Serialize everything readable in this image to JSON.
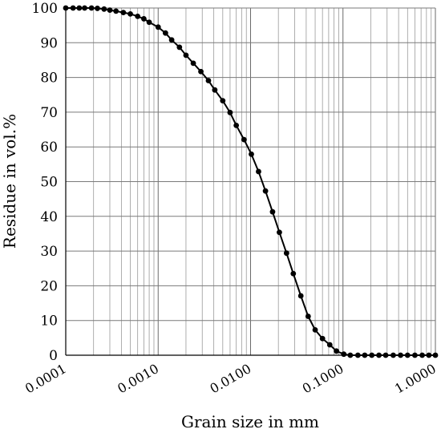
{
  "chart_data": {
    "type": "line",
    "title": "",
    "xlabel": "Grain size in mm",
    "ylabel": "Residue in vol.%",
    "x_scale": "log",
    "xlim": [
      0.0001,
      1.0
    ],
    "ylim": [
      0,
      100
    ],
    "x_tick_labels": [
      "0.0001",
      "0.0010",
      "0.0100",
      "0.1000",
      "1.0000"
    ],
    "y_tick_labels": [
      "0",
      "10",
      "20",
      "30",
      "40",
      "50",
      "60",
      "70",
      "80",
      "90",
      "100"
    ],
    "grid": true,
    "legend": "none",
    "line_color": "#000000",
    "marker": "filled-circle",
    "series": [
      {
        "x": [
          0.0001,
          0.00012,
          0.00014,
          0.00016,
          0.00019,
          0.00022,
          0.00026,
          0.0003,
          0.00035,
          0.00042,
          0.0005,
          0.0006,
          0.0007,
          0.0008,
          0.001,
          0.0012,
          0.0014,
          0.0017,
          0.002,
          0.0024,
          0.0029,
          0.0035,
          0.0041,
          0.005,
          0.006,
          0.007,
          0.0085,
          0.0102,
          0.0122,
          0.0145,
          0.0173,
          0.0205,
          0.0245,
          0.029,
          0.035,
          0.042,
          0.05,
          0.06,
          0.072,
          0.085,
          0.102,
          0.12,
          0.145,
          0.172,
          0.205,
          0.245,
          0.29,
          0.35,
          0.42,
          0.5,
          0.6,
          0.72,
          0.85,
          1.0
        ],
        "y": [
          100,
          100,
          100,
          100,
          100,
          99.9,
          99.7,
          99.4,
          99.1,
          98.7,
          98.3,
          97.6,
          96.9,
          95.9,
          94.5,
          92.8,
          90.8,
          88.7,
          86.4,
          84.1,
          81.7,
          79.1,
          76.4,
          73.3,
          69.9,
          66.2,
          62.1,
          57.9,
          52.9,
          47.3,
          41.3,
          35.4,
          29.4,
          23.5,
          17.1,
          11.2,
          7.3,
          4.8,
          3.0,
          1.2,
          0.3,
          0,
          0,
          0,
          0,
          0,
          0,
          0,
          0,
          0,
          0,
          0,
          0,
          0
        ]
      }
    ]
  }
}
